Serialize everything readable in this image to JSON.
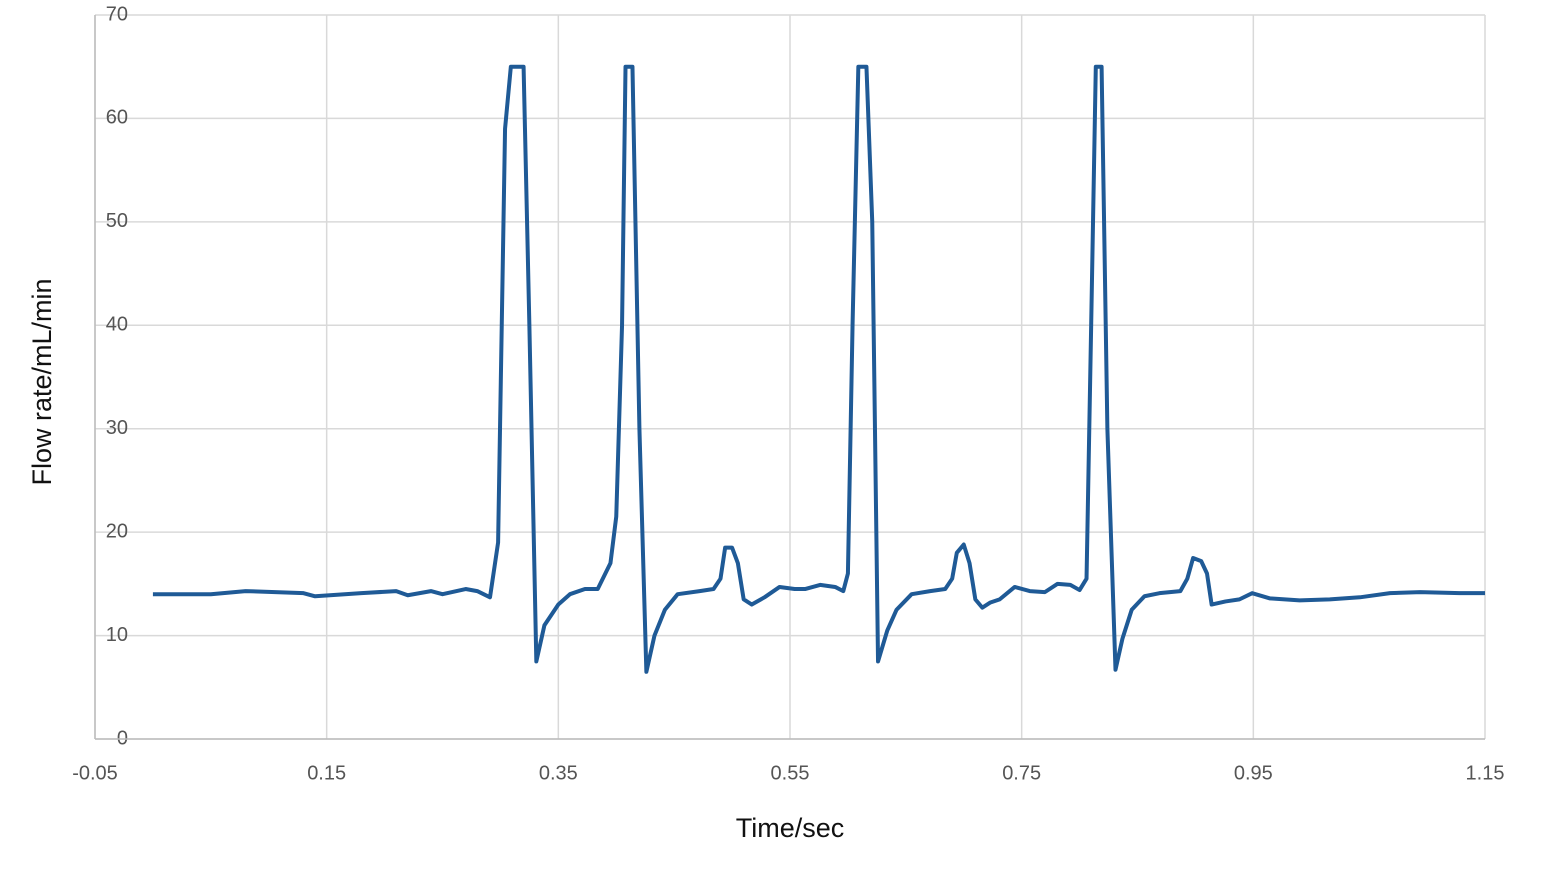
{
  "chart_data": {
    "type": "line",
    "x_label": "Time/sec",
    "y_label": "Flow rate/mL/min",
    "x": [
      0,
      0.05,
      0.08,
      0.13,
      0.14,
      0.18,
      0.21,
      0.22,
      0.24,
      0.25,
      0.27,
      0.28,
      0.291,
      0.298,
      0.304,
      0.309,
      0.32,
      0.325,
      0.331,
      0.338,
      0.35,
      0.36,
      0.373,
      0.384,
      0.395,
      0.4,
      0.405,
      0.408,
      0.414,
      0.42,
      0.426,
      0.433,
      0.442,
      0.453,
      0.472,
      0.484,
      0.49,
      0.494,
      0.5,
      0.505,
      0.51,
      0.517,
      0.528,
      0.541,
      0.554,
      0.563,
      0.576,
      0.589,
      0.596,
      0.6,
      0.604,
      0.609,
      0.616,
      0.621,
      0.626,
      0.634,
      0.642,
      0.655,
      0.671,
      0.684,
      0.69,
      0.694,
      0.7,
      0.705,
      0.71,
      0.716,
      0.723,
      0.731,
      0.744,
      0.757,
      0.77,
      0.781,
      0.792,
      0.8,
      0.806,
      0.81,
      0.814,
      0.819,
      0.824,
      0.831,
      0.837,
      0.845,
      0.856,
      0.869,
      0.887,
      0.893,
      0.898,
      0.905,
      0.91,
      0.914,
      0.926,
      0.938,
      0.949,
      0.964,
      0.99,
      1.016,
      1.042,
      1.068,
      1.094,
      1.128,
      1.15
    ],
    "series": [
      {
        "name": "Flow rate",
        "color": "#1f5a96",
        "values": [
          14,
          14,
          14.3,
          14.1,
          13.8,
          14.1,
          14.3,
          13.9,
          14.3,
          14.0,
          14.5,
          14.3,
          13.7,
          19,
          59,
          65,
          65,
          40,
          7.5,
          11,
          13,
          14,
          14.5,
          14.5,
          17,
          21.5,
          40,
          65,
          65,
          30,
          6.5,
          10,
          12.5,
          14,
          14.3,
          14.5,
          15.5,
          18.5,
          18.5,
          17,
          13.5,
          13,
          13.7,
          14.7,
          14.5,
          14.5,
          14.9,
          14.7,
          14.3,
          16,
          40,
          65,
          65,
          50,
          7.5,
          10.5,
          12.5,
          14,
          14.3,
          14.5,
          15.5,
          18,
          18.8,
          17,
          13.5,
          12.7,
          13.2,
          13.5,
          14.7,
          14.3,
          14.2,
          15,
          14.9,
          14.4,
          15.5,
          40,
          65,
          65,
          30,
          6.7,
          9.7,
          12.5,
          13.8,
          14.1,
          14.3,
          15.5,
          17.5,
          17.2,
          16,
          13,
          13.3,
          13.5,
          14.1,
          13.6,
          13.4,
          13.5,
          13.7,
          14.1,
          14.2,
          14.1,
          14.1
        ]
      }
    ],
    "xlim": [
      -0.05,
      1.15
    ],
    "xticks": [
      -0.05,
      0.15,
      0.35,
      0.55,
      0.75,
      0.95,
      1.15
    ],
    "ylim": [
      0,
      70
    ],
    "yticks": [
      0,
      10,
      20,
      30,
      40,
      50,
      60,
      70
    ],
    "grid": true
  }
}
